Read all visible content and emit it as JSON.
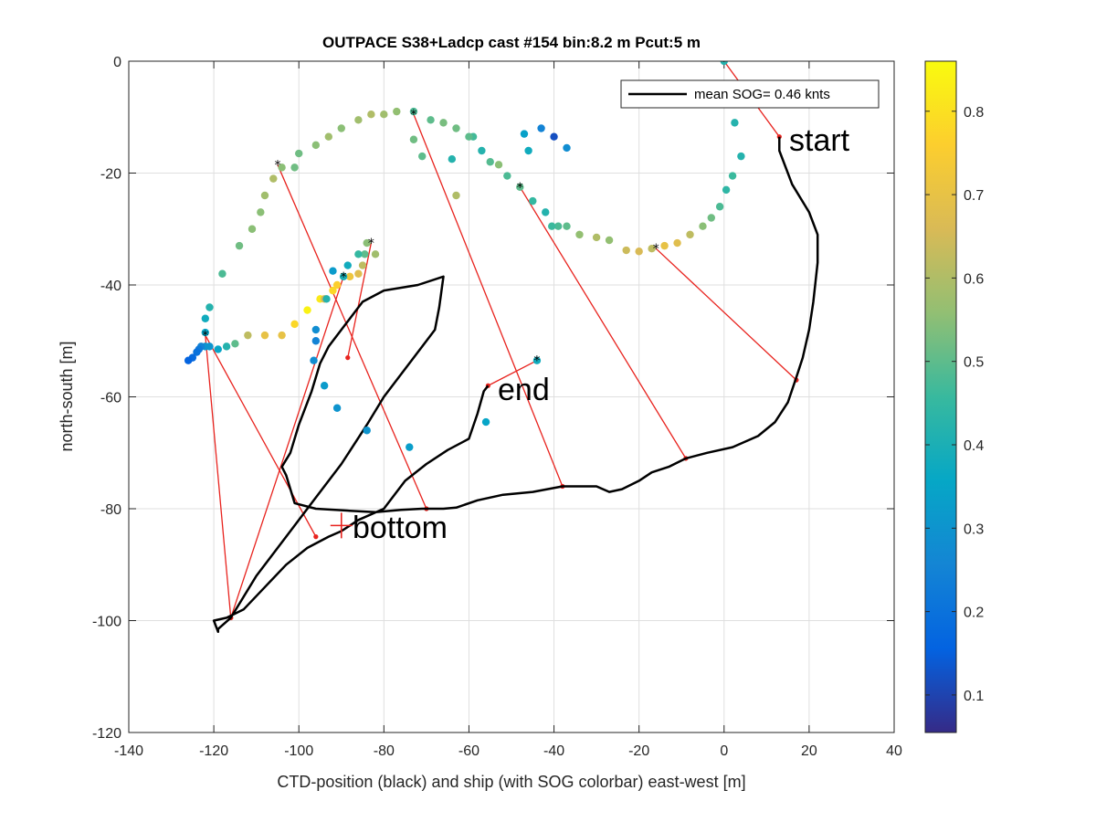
{
  "chart_data": {
    "type": "scatter",
    "title": "OUTPACE S38+Ladcp cast #154 bin:8.2 m  Pcut:5 m",
    "xlabel": "CTD-position (black) and ship (with SOG colorbar) east-west [m]",
    "ylabel": "north-south [m]",
    "xlim": [
      -140,
      40
    ],
    "ylim": [
      -120,
      0
    ],
    "xticks": [
      -140,
      -120,
      -100,
      -80,
      -60,
      -40,
      -20,
      0,
      20,
      40
    ],
    "yticks": [
      0,
      -20,
      -40,
      -60,
      -80,
      -100,
      -120
    ],
    "grid": true,
    "legend": {
      "label": "mean SOG=  0.46 knts",
      "position": "top-right"
    },
    "annotations": [
      {
        "text": "start",
        "x": 15,
        "y": -14.5
      },
      {
        "text": "end",
        "x": -53,
        "y": -59.5
      },
      {
        "text": "bottom",
        "x": -88,
        "y": -83
      }
    ],
    "bottom_marker": {
      "x": -90,
      "y": -83
    },
    "colorbar": {
      "min": 0.055,
      "max": 0.86,
      "ticks": [
        0.1,
        0.2,
        0.3,
        0.4,
        0.5,
        0.6,
        0.7,
        0.8
      ],
      "colormap": [
        "#352a87",
        "#0363e1",
        "#1485d4",
        "#06a7c6",
        "#38b99e",
        "#92bf73",
        "#d9ba56",
        "#fcce2e",
        "#f9fb0e"
      ]
    },
    "ctd_track": [
      [
        13,
        -13.5
      ],
      [
        13,
        -16
      ],
      [
        16,
        -22
      ],
      [
        20,
        -27
      ],
      [
        22,
        -31
      ],
      [
        22,
        -36
      ],
      [
        21,
        -43
      ],
      [
        20,
        -48
      ],
      [
        18.5,
        -53
      ],
      [
        17,
        -56.5
      ],
      [
        15,
        -61
      ],
      [
        12,
        -64.5
      ],
      [
        8,
        -67
      ],
      [
        2,
        -69
      ],
      [
        -4,
        -70
      ],
      [
        -9,
        -71
      ],
      [
        -13,
        -72.5
      ],
      [
        -17,
        -73.5
      ],
      [
        -20,
        -75
      ],
      [
        -24,
        -76.5
      ],
      [
        -27,
        -77
      ],
      [
        -30,
        -76
      ],
      [
        -36,
        -76
      ],
      [
        -38,
        -76
      ],
      [
        -45,
        -77
      ],
      [
        -52,
        -77.5
      ],
      [
        -58,
        -78.5
      ],
      [
        -63,
        -79.8
      ],
      [
        -66,
        -80
      ],
      [
        -71,
        -80
      ],
      [
        -76,
        -80.2
      ],
      [
        -82,
        -80.6
      ],
      [
        -87,
        -80.4
      ],
      [
        -96,
        -80
      ],
      [
        -101,
        -79
      ],
      [
        -103,
        -74
      ],
      [
        -104,
        -72.5
      ],
      [
        -102,
        -70
      ],
      [
        -100,
        -65
      ],
      [
        -97,
        -59
      ],
      [
        -95,
        -54
      ],
      [
        -93,
        -51
      ],
      [
        -91,
        -49
      ],
      [
        -88,
        -46
      ],
      [
        -85,
        -43
      ],
      [
        -80,
        -41
      ],
      [
        -72,
        -40
      ],
      [
        -66,
        -38.5
      ],
      [
        -67,
        -44
      ],
      [
        -68,
        -48
      ],
      [
        -75,
        -55
      ],
      [
        -80,
        -60
      ],
      [
        -84,
        -65
      ],
      [
        -90,
        -72
      ],
      [
        -96,
        -78
      ],
      [
        -103,
        -85
      ],
      [
        -110,
        -92
      ],
      [
        -116,
        -99.5
      ],
      [
        -119,
        -101.5
      ],
      [
        -119,
        -102
      ],
      [
        -120,
        -100
      ],
      [
        -117,
        -99.5
      ],
      [
        -113,
        -98
      ],
      [
        -108,
        -94
      ],
      [
        -103,
        -90
      ],
      [
        -98,
        -87
      ],
      [
        -93,
        -85
      ],
      [
        -90,
        -84
      ],
      [
        -88,
        -83
      ],
      [
        -86,
        -82
      ],
      [
        -80,
        -80
      ],
      [
        -75,
        -75
      ],
      [
        -70,
        -72
      ],
      [
        -65,
        -69.5
      ],
      [
        -60,
        -67.5
      ],
      [
        -58,
        -63
      ],
      [
        -56.5,
        -59
      ],
      [
        -55.5,
        -58
      ]
    ],
    "ship_points": [
      {
        "x": 0,
        "y": 0,
        "v": 0.42
      },
      {
        "x": 2.5,
        "y": -11,
        "v": 0.42
      },
      {
        "x": 4,
        "y": -17,
        "v": 0.42
      },
      {
        "x": 2,
        "y": -20.5,
        "v": 0.46
      },
      {
        "x": 0.5,
        "y": -23,
        "v": 0.44
      },
      {
        "x": -1,
        "y": -26,
        "v": 0.48
      },
      {
        "x": -3,
        "y": -28,
        "v": 0.52
      },
      {
        "x": -5,
        "y": -29.5,
        "v": 0.55
      },
      {
        "x": -8,
        "y": -31,
        "v": 0.62
      },
      {
        "x": -11,
        "y": -32.5,
        "v": 0.68
      },
      {
        "x": -14,
        "y": -33,
        "v": 0.7
      },
      {
        "x": -17,
        "y": -33.5,
        "v": 0.62
      },
      {
        "x": -20,
        "y": -34,
        "v": 0.66
      },
      {
        "x": -23,
        "y": -33.8,
        "v": 0.64
      },
      {
        "x": -27,
        "y": -32,
        "v": 0.56
      },
      {
        "x": -30,
        "y": -31.5,
        "v": 0.6
      },
      {
        "x": -34,
        "y": -31,
        "v": 0.56
      },
      {
        "x": -37,
        "y": -29.5,
        "v": 0.5
      },
      {
        "x": -39,
        "y": -29.5,
        "v": 0.48
      },
      {
        "x": -40.5,
        "y": -29.5,
        "v": 0.46
      },
      {
        "x": -42,
        "y": -27,
        "v": 0.42
      },
      {
        "x": -45,
        "y": -25,
        "v": 0.45
      },
      {
        "x": -48,
        "y": -22.5,
        "v": 0.5
      },
      {
        "x": -51,
        "y": -20.5,
        "v": 0.48
      },
      {
        "x": -53,
        "y": -18.5,
        "v": 0.55
      },
      {
        "x": -55,
        "y": -18,
        "v": 0.49
      },
      {
        "x": -57,
        "y": -16,
        "v": 0.42
      },
      {
        "x": -59,
        "y": -13.5,
        "v": 0.47
      },
      {
        "x": -60,
        "y": -13.5,
        "v": 0.5
      },
      {
        "x": -63,
        "y": -12,
        "v": 0.52
      },
      {
        "x": -66,
        "y": -11,
        "v": 0.53
      },
      {
        "x": -69,
        "y": -10.5,
        "v": 0.5
      },
      {
        "x": -73,
        "y": -9,
        "v": 0.48
      },
      {
        "x": -77,
        "y": -9,
        "v": 0.56
      },
      {
        "x": -80,
        "y": -9.5,
        "v": 0.58
      },
      {
        "x": -83,
        "y": -9.5,
        "v": 0.6
      },
      {
        "x": -86,
        "y": -10.5,
        "v": 0.58
      },
      {
        "x": -90,
        "y": -12,
        "v": 0.55
      },
      {
        "x": -93,
        "y": -13.5,
        "v": 0.58
      },
      {
        "x": -96,
        "y": -15,
        "v": 0.55
      },
      {
        "x": -100,
        "y": -16.5,
        "v": 0.52
      },
      {
        "x": -101,
        "y": -19,
        "v": 0.52
      },
      {
        "x": -104,
        "y": -19,
        "v": 0.55
      },
      {
        "x": -106,
        "y": -21,
        "v": 0.6
      },
      {
        "x": -108,
        "y": -24,
        "v": 0.58
      },
      {
        "x": -109,
        "y": -27,
        "v": 0.55
      },
      {
        "x": -111,
        "y": -30,
        "v": 0.55
      },
      {
        "x": -114,
        "y": -33,
        "v": 0.52
      },
      {
        "x": -118,
        "y": -38,
        "v": 0.48
      },
      {
        "x": -121,
        "y": -44,
        "v": 0.42
      },
      {
        "x": -122,
        "y": -46,
        "v": 0.38
      },
      {
        "x": -122,
        "y": -48.5,
        "v": 0.35
      },
      {
        "x": -122,
        "y": -51,
        "v": 0.3
      },
      {
        "x": -123,
        "y": -51,
        "v": 0.25
      },
      {
        "x": -123.5,
        "y": -51.5,
        "v": 0.22
      },
      {
        "x": -124,
        "y": -52,
        "v": 0.2
      },
      {
        "x": -125,
        "y": -53,
        "v": 0.18
      },
      {
        "x": -126,
        "y": -53.5,
        "v": 0.16
      },
      {
        "x": -121,
        "y": -51,
        "v": 0.3
      },
      {
        "x": -119,
        "y": -51.5,
        "v": 0.35
      },
      {
        "x": -117,
        "y": -51,
        "v": 0.42
      },
      {
        "x": -115,
        "y": -50.5,
        "v": 0.5
      },
      {
        "x": -112,
        "y": -49,
        "v": 0.62
      },
      {
        "x": -108,
        "y": -49,
        "v": 0.7
      },
      {
        "x": -104,
        "y": -49,
        "v": 0.7
      },
      {
        "x": -101,
        "y": -47,
        "v": 0.78
      },
      {
        "x": -98,
        "y": -44.5,
        "v": 0.84
      },
      {
        "x": -95,
        "y": -42.5,
        "v": 0.82
      },
      {
        "x": -94,
        "y": -42.5,
        "v": 0.66
      },
      {
        "x": -92,
        "y": -41,
        "v": 0.78
      },
      {
        "x": -91,
        "y": -40,
        "v": 0.76
      },
      {
        "x": -88,
        "y": -38.5,
        "v": 0.72
      },
      {
        "x": -86,
        "y": -38,
        "v": 0.68
      },
      {
        "x": -85,
        "y": -36.5,
        "v": 0.62
      },
      {
        "x": -82,
        "y": -34.5,
        "v": 0.58
      },
      {
        "x": -84,
        "y": -32.5,
        "v": 0.55
      },
      {
        "x": -84.5,
        "y": -34.5,
        "v": 0.5
      },
      {
        "x": -86,
        "y": -34.5,
        "v": 0.45
      },
      {
        "x": -89.5,
        "y": -38.5,
        "v": 0.4
      },
      {
        "x": -88.5,
        "y": -36.5,
        "v": 0.38
      },
      {
        "x": -92,
        "y": -37.5,
        "v": 0.32
      },
      {
        "x": -93.5,
        "y": -42.5,
        "v": 0.42
      },
      {
        "x": -96,
        "y": -48,
        "v": 0.28
      },
      {
        "x": -96,
        "y": -50,
        "v": 0.25
      },
      {
        "x": -96.5,
        "y": -53.5,
        "v": 0.28
      },
      {
        "x": -94,
        "y": -58,
        "v": 0.32
      },
      {
        "x": -91,
        "y": -62,
        "v": 0.3
      },
      {
        "x": -84,
        "y": -66,
        "v": 0.3
      },
      {
        "x": -74,
        "y": -69,
        "v": 0.33
      },
      {
        "x": -56,
        "y": -64.5,
        "v": 0.35
      },
      {
        "x": -44,
        "y": -53.5,
        "v": 0.38
      },
      {
        "x": -43,
        "y": -12,
        "v": 0.25
      },
      {
        "x": -40,
        "y": -13.5,
        "v": 0.12
      },
      {
        "x": -37,
        "y": -15.5,
        "v": 0.28
      },
      {
        "x": -46,
        "y": -16,
        "v": 0.38
      },
      {
        "x": -47,
        "y": -13,
        "v": 0.34
      },
      {
        "x": -64,
        "y": -17.5,
        "v": 0.42
      },
      {
        "x": -63,
        "y": -24,
        "v": 0.6
      },
      {
        "x": -73,
        "y": -14,
        "v": 0.52
      },
      {
        "x": -71,
        "y": -17,
        "v": 0.5
      }
    ],
    "black_markers": [
      [
        0,
        0
      ],
      [
        -16,
        -33.5
      ],
      [
        -48,
        -22.5
      ],
      [
        -73,
        -9.5
      ],
      [
        -105,
        -18.5
      ],
      [
        -83,
        -32.5
      ],
      [
        -122,
        -49
      ],
      [
        -89.5,
        -38.5
      ],
      [
        -44,
        -53.5
      ]
    ],
    "red_links": [
      [
        [
          0,
          0
        ],
        [
          13,
          -13.5
        ]
      ],
      [
        [
          -16,
          -33.5
        ],
        [
          17,
          -57
        ]
      ],
      [
        [
          -48,
          -22.5
        ],
        [
          -9,
          -71
        ]
      ],
      [
        [
          -73,
          -9.5
        ],
        [
          -38,
          -76
        ]
      ],
      [
        [
          -105,
          -18.5
        ],
        [
          -70,
          -80
        ]
      ],
      [
        [
          -83,
          -32.5
        ],
        [
          -88.5,
          -53
        ]
      ],
      [
        [
          -89.5,
          -38.5
        ],
        [
          -116,
          -99.5
        ]
      ],
      [
        [
          -122,
          -49
        ],
        [
          -116,
          -99.5
        ]
      ],
      [
        [
          -122,
          -49
        ],
        [
          -96,
          -85
        ]
      ],
      [
        [
          -44,
          -53.5
        ],
        [
          -55.5,
          -58
        ]
      ]
    ]
  }
}
